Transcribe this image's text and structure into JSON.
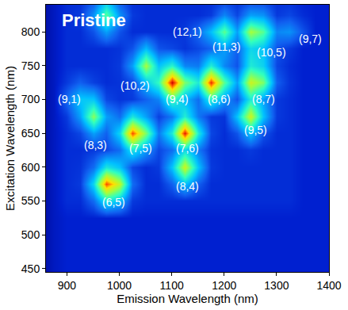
{
  "chart_data": {
    "type": "heatmap",
    "title": "Pristine",
    "x_label": "Emission Wavelength (nm)",
    "y_label": "Excitation Wavelength (nm)",
    "xlim": [
      860,
      1400
    ],
    "ylim": [
      445,
      840
    ],
    "xticks": [
      900,
      1000,
      1100,
      1200,
      1300,
      1400
    ],
    "yticks": [
      450,
      500,
      550,
      600,
      650,
      700,
      750,
      800
    ],
    "grid": false,
    "zlim": [
      0,
      1
    ],
    "x": [
      850,
      875,
      900,
      925,
      950,
      975,
      1000,
      1025,
      1050,
      1075,
      1100,
      1125,
      1150,
      1175,
      1200,
      1225,
      1250,
      1275,
      1300,
      1325,
      1350,
      1375,
      1400
    ],
    "y": [
      450,
      475,
      500,
      525,
      550,
      575,
      600,
      625,
      650,
      675,
      700,
      725,
      750,
      775,
      800,
      825,
      850
    ],
    "z": [
      [
        0.04,
        0.08,
        0.1,
        0.1,
        0.1,
        0.1,
        0.1,
        0.1,
        0.1,
        0.1,
        0.1,
        0.1,
        0.1,
        0.1,
        0.1,
        0.1,
        0.1,
        0.1,
        0.1,
        0.1,
        0.1,
        0.1,
        0.1
      ],
      [
        0.04,
        0.08,
        0.1,
        0.1,
        0.1,
        0.1,
        0.1,
        0.1,
        0.1,
        0.1,
        0.1,
        0.1,
        0.1,
        0.1,
        0.1,
        0.1,
        0.1,
        0.1,
        0.1,
        0.1,
        0.1,
        0.1,
        0.1
      ],
      [
        0.04,
        0.08,
        0.1,
        0.1,
        0.1,
        0.1,
        0.1,
        0.1,
        0.1,
        0.1,
        0.1,
        0.1,
        0.1,
        0.1,
        0.1,
        0.1,
        0.1,
        0.1,
        0.1,
        0.1,
        0.1,
        0.1,
        0.1
      ],
      [
        0.04,
        0.08,
        0.1,
        0.1,
        0.1,
        0.1,
        0.1,
        0.1,
        0.1,
        0.1,
        0.1,
        0.1,
        0.1,
        0.1,
        0.1,
        0.1,
        0.1,
        0.1,
        0.1,
        0.1,
        0.1,
        0.1,
        0.1
      ],
      [
        0.04,
        0.08,
        0.12,
        0.12,
        0.22,
        0.44,
        0.36,
        0.14,
        0.12,
        0.12,
        0.12,
        0.12,
        0.12,
        0.12,
        0.12,
        0.12,
        0.12,
        0.12,
        0.12,
        0.12,
        0.1,
        0.1,
        0.1
      ],
      [
        0.04,
        0.08,
        0.12,
        0.14,
        0.4,
        0.92,
        0.7,
        0.22,
        0.12,
        0.12,
        0.2,
        0.36,
        0.2,
        0.12,
        0.12,
        0.12,
        0.12,
        0.12,
        0.12,
        0.12,
        0.1,
        0.1,
        0.1
      ],
      [
        0.04,
        0.08,
        0.12,
        0.13,
        0.22,
        0.44,
        0.36,
        0.16,
        0.12,
        0.14,
        0.36,
        0.72,
        0.36,
        0.14,
        0.12,
        0.12,
        0.12,
        0.12,
        0.12,
        0.12,
        0.1,
        0.1,
        0.1
      ],
      [
        0.04,
        0.08,
        0.12,
        0.12,
        0.14,
        0.16,
        0.22,
        0.44,
        0.3,
        0.16,
        0.22,
        0.4,
        0.24,
        0.13,
        0.12,
        0.12,
        0.14,
        0.12,
        0.12,
        0.12,
        0.1,
        0.1,
        0.1
      ],
      [
        0.04,
        0.08,
        0.12,
        0.16,
        0.3,
        0.2,
        0.4,
        0.92,
        0.6,
        0.24,
        0.45,
        0.97,
        0.45,
        0.16,
        0.12,
        0.18,
        0.36,
        0.18,
        0.12,
        0.12,
        0.1,
        0.1,
        0.1
      ],
      [
        0.04,
        0.08,
        0.14,
        0.3,
        0.62,
        0.3,
        0.22,
        0.44,
        0.3,
        0.15,
        0.24,
        0.46,
        0.24,
        0.14,
        0.13,
        0.36,
        0.72,
        0.36,
        0.14,
        0.12,
        0.1,
        0.1,
        0.1
      ],
      [
        0.04,
        0.08,
        0.22,
        0.37,
        0.36,
        0.16,
        0.13,
        0.14,
        0.2,
        0.26,
        0.52,
        0.34,
        0.22,
        0.48,
        0.3,
        0.18,
        0.45,
        0.3,
        0.14,
        0.12,
        0.1,
        0.1,
        0.1
      ],
      [
        0.04,
        0.08,
        0.14,
        0.2,
        0.15,
        0.12,
        0.13,
        0.16,
        0.36,
        0.5,
        1.0,
        0.6,
        0.45,
        0.95,
        0.55,
        0.3,
        0.72,
        0.6,
        0.2,
        0.13,
        0.1,
        0.1,
        0.1
      ],
      [
        0.04,
        0.08,
        0.12,
        0.12,
        0.12,
        0.12,
        0.14,
        0.3,
        0.66,
        0.36,
        0.48,
        0.26,
        0.24,
        0.46,
        0.26,
        0.18,
        0.45,
        0.39,
        0.16,
        0.12,
        0.1,
        0.1,
        0.1
      ],
      [
        0.04,
        0.08,
        0.12,
        0.12,
        0.12,
        0.12,
        0.13,
        0.18,
        0.34,
        0.18,
        0.16,
        0.13,
        0.16,
        0.2,
        0.3,
        0.2,
        0.4,
        0.36,
        0.18,
        0.14,
        0.1,
        0.1,
        0.1
      ],
      [
        0.04,
        0.08,
        0.12,
        0.12,
        0.18,
        0.3,
        0.18,
        0.12,
        0.12,
        0.12,
        0.12,
        0.14,
        0.22,
        0.35,
        0.56,
        0.3,
        0.66,
        0.55,
        0.26,
        0.28,
        0.18,
        0.1,
        0.1
      ],
      [
        0.04,
        0.08,
        0.12,
        0.14,
        0.28,
        0.55,
        0.28,
        0.14,
        0.12,
        0.12,
        0.12,
        0.12,
        0.12,
        0.14,
        0.26,
        0.16,
        0.3,
        0.28,
        0.14,
        0.16,
        0.12,
        0.1,
        0.1
      ],
      [
        0.04,
        0.08,
        0.12,
        0.12,
        0.16,
        0.3,
        0.16,
        0.12,
        0.12,
        0.12,
        0.12,
        0.12,
        0.12,
        0.12,
        0.12,
        0.12,
        0.12,
        0.12,
        0.12,
        0.12,
        0.1,
        0.1,
        0.1
      ]
    ],
    "labels": [
      {
        "text": "(12,1)",
        "x": 1130,
        "y": 800
      },
      {
        "text": "(11,3)",
        "x": 1205,
        "y": 778
      },
      {
        "text": "(10,5)",
        "x": 1290,
        "y": 770
      },
      {
        "text": "(9,7)",
        "x": 1365,
        "y": 790
      },
      {
        "text": "(10,2)",
        "x": 1030,
        "y": 720
      },
      {
        "text": "(9,1)",
        "x": 905,
        "y": 700
      },
      {
        "text": "(9,4)",
        "x": 1110,
        "y": 700
      },
      {
        "text": "(8,6)",
        "x": 1190,
        "y": 700
      },
      {
        "text": "(8,7)",
        "x": 1275,
        "y": 700
      },
      {
        "text": "(9,5)",
        "x": 1260,
        "y": 655
      },
      {
        "text": "(8,3)",
        "x": 955,
        "y": 632
      },
      {
        "text": "(7,5)",
        "x": 1040,
        "y": 628
      },
      {
        "text": "(7,6)",
        "x": 1130,
        "y": 628
      },
      {
        "text": "(8,4)",
        "x": 1130,
        "y": 572
      },
      {
        "text": "(6,5)",
        "x": 990,
        "y": 548
      }
    ]
  }
}
